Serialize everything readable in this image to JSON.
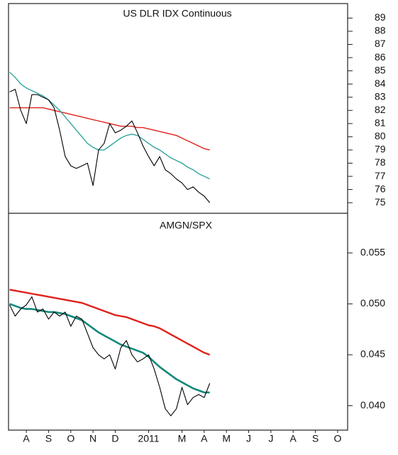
{
  "chart_data": [
    {
      "type": "line",
      "title": "US DLR IDX Continuous",
      "xlim": [
        -0.3,
        14.95
      ],
      "ylim": [
        74.2,
        90.1
      ],
      "yticks": [
        75,
        76,
        77,
        78,
        79,
        80,
        81,
        82,
        83,
        84,
        85,
        86,
        87,
        88,
        89
      ],
      "x": [
        -0.25,
        0,
        0.25,
        0.5,
        0.75,
        1,
        1.25,
        1.5,
        1.75,
        2,
        2.25,
        2.5,
        2.75,
        3,
        3.25,
        3.5,
        3.75,
        4,
        4.25,
        4.5,
        4.75,
        5,
        5.25,
        5.5,
        5.75,
        6,
        6.25,
        6.5,
        6.75,
        7,
        7.25,
        7.5,
        7.75,
        8,
        8.25,
        8.5,
        8.75
      ],
      "series": [
        {
          "color": "#e0221c",
          "values": [
            82.2,
            82.2,
            82.2,
            82.2,
            82.2,
            82.2,
            82.2,
            82.1,
            82.0,
            81.9,
            81.8,
            81.7,
            81.6,
            81.5,
            81.4,
            81.3,
            81.2,
            81.1,
            81.0,
            80.9,
            80.8,
            80.8,
            80.8,
            80.7,
            80.7,
            80.6,
            80.5,
            80.4,
            80.3,
            80.2,
            80.1,
            79.9,
            79.7,
            79.5,
            79.3,
            79.1,
            79.0
          ]
        },
        {
          "color": "#2fa59d",
          "values": [
            84.9,
            84.5,
            84.0,
            83.7,
            83.5,
            83.3,
            83.1,
            82.8,
            82.4,
            82.0,
            81.5,
            81.0,
            80.5,
            80.0,
            79.5,
            79.2,
            79.0,
            79.0,
            79.3,
            79.6,
            79.9,
            80.1,
            80.2,
            80.1,
            79.8,
            79.5,
            79.2,
            79.0,
            78.7,
            78.4,
            78.2,
            78.0,
            77.7,
            77.5,
            77.2,
            77.0,
            76.8
          ]
        },
        {
          "color": "#000000",
          "values": [
            83.4,
            83.6,
            82,
            81,
            83.2,
            83.2,
            83,
            82.8,
            82.2,
            80.5,
            78.5,
            77.8,
            77.6,
            77.8,
            78,
            76.3,
            79,
            79.5,
            81,
            80.3,
            80.5,
            80.8,
            81.2,
            80.3,
            79.3,
            78.5,
            77.8,
            78.5,
            77.5,
            77.2,
            76.8,
            76.5,
            76,
            76.2,
            75.8,
            75.5,
            75.0
          ]
        }
      ]
    },
    {
      "type": "line",
      "title": "AMGN/SPX",
      "xlim": [
        -0.3,
        14.95
      ],
      "ylim": [
        0.0376,
        0.0589
      ],
      "yticks": [
        {
          "value": 0.04,
          "label": "0.040"
        },
        0.045,
        {
          "value": 0.05,
          "label": "0.050"
        },
        0.055
      ],
      "xticks": [
        {
          "value": 0.5,
          "label": "A"
        },
        {
          "value": 1.5,
          "label": "S"
        },
        {
          "value": 2.5,
          "label": "O"
        },
        {
          "value": 3.5,
          "label": "N"
        },
        {
          "value": 4.5,
          "label": "D"
        },
        {
          "value": 6,
          "label": "2011"
        },
        {
          "value": 7.5,
          "label": "M"
        },
        {
          "value": 8.5,
          "label": "A"
        },
        {
          "value": 9.5,
          "label": "M"
        },
        {
          "value": 10.5,
          "label": "J"
        },
        {
          "value": 11.5,
          "label": "J"
        },
        {
          "value": 12.5,
          "label": "A"
        },
        {
          "value": 13.5,
          "label": "S"
        },
        {
          "value": 14.5,
          "label": "O"
        }
      ],
      "x": [
        -0.25,
        0,
        0.25,
        0.5,
        0.75,
        1,
        1.25,
        1.5,
        1.75,
        2,
        2.25,
        2.5,
        2.75,
        3,
        3.25,
        3.5,
        3.75,
        4,
        4.25,
        4.5,
        4.75,
        5,
        5.25,
        5.5,
        5.75,
        6,
        6.25,
        6.5,
        6.75,
        7,
        7.25,
        7.5,
        7.75,
        8,
        8.25,
        8.5,
        8.75
      ],
      "series": [
        {
          "color": "#e0221c",
          "values": [
            0.0514,
            0.0513,
            0.0512,
            0.0511,
            0.051,
            0.0509,
            0.0508,
            0.0507,
            0.0506,
            0.0505,
            0.0504,
            0.0503,
            0.0502,
            0.0501,
            0.0499,
            0.0497,
            0.0495,
            0.0493,
            0.0491,
            0.0489,
            0.0488,
            0.0487,
            0.0485,
            0.0483,
            0.0481,
            0.0479,
            0.0478,
            0.0476,
            0.0473,
            0.047,
            0.0467,
            0.0464,
            0.0461,
            0.0458,
            0.0455,
            0.0452,
            0.045
          ]
        },
        {
          "color": "#12877b",
          "values": [
            0.05,
            0.0498,
            0.0496,
            0.0495,
            0.0495,
            0.0494,
            0.0493,
            0.0492,
            0.0492,
            0.0491,
            0.049,
            0.0488,
            0.0486,
            0.0484,
            0.048,
            0.0476,
            0.0472,
            0.0469,
            0.0466,
            0.0463,
            0.046,
            0.0458,
            0.0456,
            0.0454,
            0.0452,
            0.0448,
            0.0443,
            0.0438,
            0.0434,
            0.043,
            0.0426,
            0.0423,
            0.042,
            0.0417,
            0.0415,
            0.0413,
            0.0413
          ]
        },
        {
          "color": "#000000",
          "values": [
            0.0499,
            0.0488,
            0.0495,
            0.0499,
            0.0507,
            0.0492,
            0.0495,
            0.0485,
            0.0492,
            0.0488,
            0.0492,
            0.0478,
            0.0488,
            0.0485,
            0.0471,
            0.0457,
            0.045,
            0.0446,
            0.045,
            0.0436,
            0.0457,
            0.0464,
            0.045,
            0.0443,
            0.0446,
            0.045,
            0.0436,
            0.0418,
            0.0397,
            0.039,
            0.0397,
            0.0418,
            0.0401,
            0.0408,
            0.0411,
            0.0408,
            0.0422
          ]
        }
      ]
    }
  ]
}
